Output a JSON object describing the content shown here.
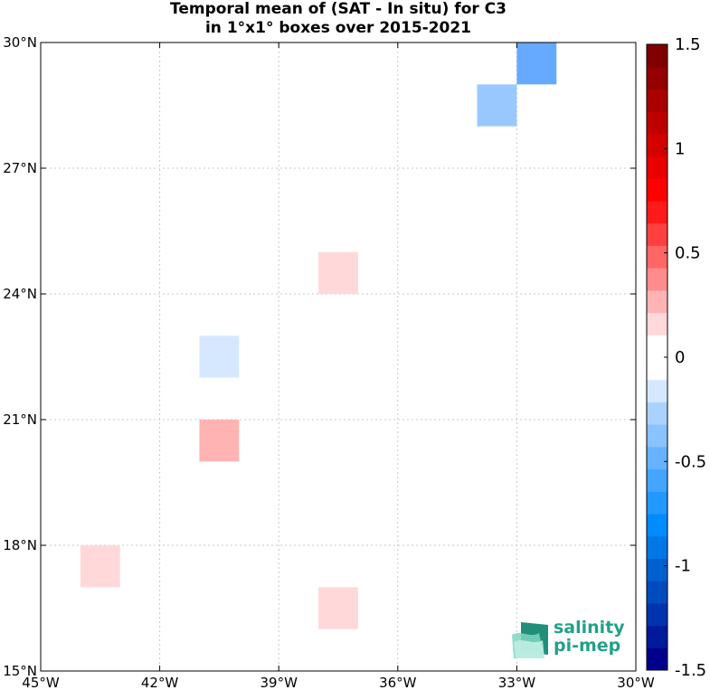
{
  "title": {
    "line1": "Temporal mean of (SAT - In situ) for C3",
    "line2": "in 1°x1° boxes over 2015-2021"
  },
  "logo": {
    "line1": "salinity",
    "line2": "pi-mep",
    "color": "#24a089"
  },
  "chart_data": {
    "type": "heatmap",
    "title": "Temporal mean of (SAT - In situ) for C3 in 1°x1° boxes over 2015-2021",
    "xlim": [
      -45,
      -30
    ],
    "ylim": [
      15,
      30
    ],
    "grid": true,
    "x_ticks": [
      -45,
      -42,
      -39,
      -36,
      -33,
      -30
    ],
    "x_tick_labels": [
      "45°W",
      "42°W",
      "39°W",
      "36°W",
      "33°W",
      "30°W"
    ],
    "y_ticks": [
      15,
      18,
      21,
      24,
      27,
      30
    ],
    "y_tick_labels": [
      "15°N",
      "18°N",
      "21°N",
      "24°N",
      "27°N",
      "30°N"
    ],
    "cells": [
      {
        "lon": [
          -33,
          -32
        ],
        "lat": [
          29,
          30
        ],
        "value": -0.45,
        "color": "#66aaff"
      },
      {
        "lon": [
          -34,
          -33
        ],
        "lat": [
          28,
          29
        ],
        "value": -0.35,
        "color": "#99c8ff"
      },
      {
        "lon": [
          -38,
          -37
        ],
        "lat": [
          24,
          25
        ],
        "value": 0.15,
        "color": "#ffd9d9"
      },
      {
        "lon": [
          -41,
          -40
        ],
        "lat": [
          22,
          23
        ],
        "value": -0.15,
        "color": "#d6e8ff"
      },
      {
        "lon": [
          -41,
          -40
        ],
        "lat": [
          20,
          21
        ],
        "value": 0.35,
        "color": "#ffb3b3"
      },
      {
        "lon": [
          -44,
          -43
        ],
        "lat": [
          17,
          18
        ],
        "value": 0.15,
        "color": "#ffd9d9"
      },
      {
        "lon": [
          -38,
          -37
        ],
        "lat": [
          16,
          17
        ],
        "value": 0.15,
        "color": "#ffd9d9"
      }
    ],
    "colorbar": {
      "range": [
        -1.5,
        1.5
      ],
      "ticks": [
        -1.5,
        -1,
        -0.5,
        0,
        0.5,
        1,
        1.5
      ],
      "tick_labels": [
        "-1.5",
        "-1",
        "-0.5",
        "0",
        "0.5",
        "1",
        "1.5"
      ],
      "colors": [
        "#00008b",
        "#001a9c",
        "#0033ad",
        "#004cbe",
        "#0060d0",
        "#0077e6",
        "#008cff",
        "#2299ff",
        "#44a5ff",
        "#66b2ff",
        "#88c2ff",
        "#aad2ff",
        "#d6e8ff",
        "#ffffff",
        "#ffffff",
        "#ffd9d9",
        "#ffb3b3",
        "#ff8c8c",
        "#ff6666",
        "#ff4040",
        "#ff1a1a",
        "#ff0000",
        "#ea0000",
        "#d40000",
        "#bf0000",
        "#aa0000",
        "#950000",
        "#800000"
      ]
    }
  }
}
